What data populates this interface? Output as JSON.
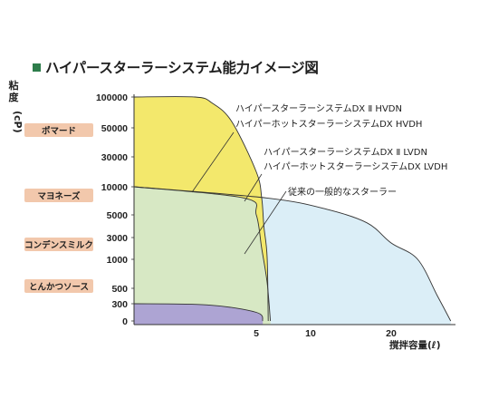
{
  "header": {
    "title": "ハイパースターラーシステム能力イメージ図"
  },
  "chart_data": {
    "type": "area",
    "title": "ハイパースターラーシステム能力イメージ図",
    "ylabel": "粘度",
    "ylabel_unit": "(cP)",
    "xlabel": "撹拌容量(ℓ)",
    "y_ticks": [
      100000,
      50000,
      30000,
      10000,
      5000,
      3000,
      1000,
      500,
      300,
      0
    ],
    "y_tick_labels": [
      "100000",
      "50000",
      "30000",
      "10000",
      "5000",
      "3000",
      "1000",
      "500",
      "300",
      "0"
    ],
    "x_ticks": [
      5,
      10,
      20
    ],
    "x_tick_labels": [
      "5",
      "10",
      "20"
    ],
    "xlim": [
      0,
      25
    ],
    "ylim": [
      0,
      100000
    ],
    "y_scale": "non-linear",
    "grid": false,
    "legend": "annotations",
    "categories": [
      {
        "label": "ポマード",
        "viscosity": 50000
      },
      {
        "label": "マヨネーズ",
        "viscosity": 10000
      },
      {
        "label": "コンデンスミルク",
        "viscosity": 2000
      },
      {
        "label": "とんかつソース",
        "viscosity": 500
      }
    ],
    "series": [
      {
        "name": "ハイパースターラーシステムDX Ⅱ HVDN / ハイパーホットスターラーシステムDX HVDH",
        "color": "#f3e86c",
        "points": [
          [
            0,
            100000
          ],
          [
            2.5,
            100000
          ],
          [
            3.2,
            90000
          ],
          [
            4,
            60000
          ],
          [
            5,
            20000
          ],
          [
            5.5,
            8000
          ],
          [
            5.7,
            4000
          ],
          [
            6,
            1200
          ],
          [
            6.1,
            0
          ]
        ]
      },
      {
        "name": "ハイパースターラーシステムDX Ⅱ LVDN / ハイパーホットスターラーシステムDX LVDH",
        "color": "#dbeef7",
        "points": [
          [
            0,
            10000
          ],
          [
            6,
            8000
          ],
          [
            12,
            6000
          ],
          [
            17,
            4300
          ],
          [
            20,
            2500
          ],
          [
            22,
            1000
          ],
          [
            23.5,
            400
          ],
          [
            24.5,
            0
          ]
        ]
      },
      {
        "name": "従来の一般的なスターラー",
        "color": "#d7e8c4",
        "points": [
          [
            0,
            10000
          ],
          [
            4.5,
            8000
          ],
          [
            5,
            5000
          ],
          [
            5.5,
            2000
          ],
          [
            6,
            600
          ],
          [
            6.3,
            0
          ]
        ]
      },
      {
        "name": "",
        "color": "#ada4d3",
        "points": [
          [
            0,
            300
          ],
          [
            3,
            280
          ],
          [
            5,
            150
          ],
          [
            5.6,
            0
          ]
        ]
      }
    ],
    "annotations": [
      {
        "text": "ハイパースターラーシステムDX Ⅱ HVDN",
        "points_to_series": 0
      },
      {
        "text": "ハイパーホットスターラーシステムDX HVDH",
        "points_to_series": 0
      },
      {
        "text": "ハイパースターラーシステムDX Ⅱ LVDN",
        "points_to_series": 1
      },
      {
        "text": "ハイパーホットスターラーシステムDX LVDH",
        "points_to_series": 1
      },
      {
        "text": "従来の一般的なスターラー",
        "points_to_series": 2
      }
    ]
  }
}
